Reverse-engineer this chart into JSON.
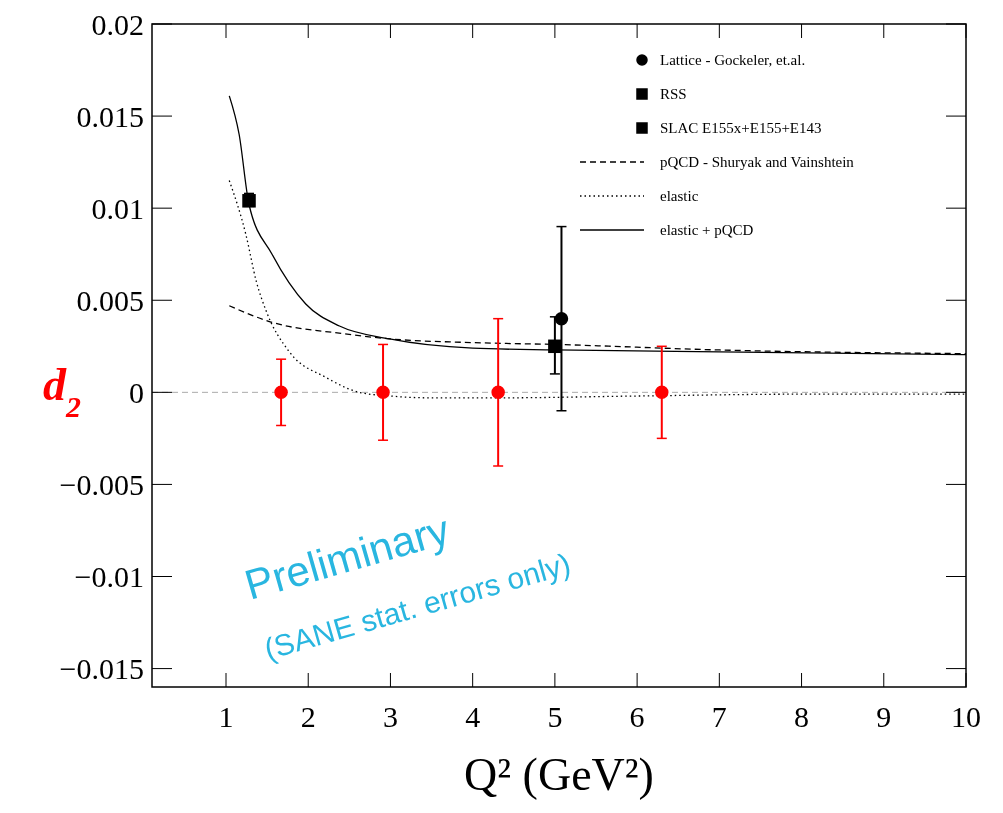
{
  "chart_data": {
    "type": "scatter",
    "xlabel": "Q² (GeV²)",
    "ylabel": "d$_{2}$",
    "xlim": [
      0.1,
      10
    ],
    "xticks": [
      1,
      2,
      3,
      4,
      5,
      6,
      7,
      8,
      9,
      10
    ],
    "ylim": [
      -0.016,
      0.02
    ],
    "yticks": [
      {
        "value": -0.015,
        "label": "−0.015"
      },
      {
        "value": -0.01,
        "label": "−0.01"
      },
      {
        "value": -0.005,
        "label": "−0.005"
      },
      0,
      0.005,
      0.01,
      0.015,
      0.02
    ],
    "legend": "top right",
    "grid": false,
    "ref_lines": [
      {
        "axis": "y",
        "value": 0,
        "color": "#aaaaaa",
        "line_style": "dashed"
      }
    ],
    "series": [
      {
        "name": "Lattice - Gockeler, et.al.",
        "marker": "circle",
        "color": "#000000",
        "x": [
          5.08
        ],
        "values": [
          0.004
        ],
        "errors": [
          [
            -0.001,
            0.009
          ]
        ]
      },
      {
        "name": "RSS",
        "marker": "square",
        "color": "#000000",
        "x": [
          1.28
        ],
        "values": [
          0.0104
        ],
        "errors": [
          [
            0.0101,
            0.0108
          ]
        ]
      },
      {
        "name": "SLAC E155x+E155+E143",
        "marker": "square",
        "color": "#000000",
        "x": [
          5.0
        ],
        "values": [
          0.0025
        ],
        "errors": [
          [
            0.001,
            0.0041
          ]
        ]
      },
      {
        "name": "pQCD - Shuryak and Vainshtein",
        "type": "line",
        "line_style": "dashed",
        "marker": "none",
        "color": "#000000",
        "x": [
          1.04,
          1.56,
          2.4,
          3,
          4,
          5,
          7,
          10
        ],
        "values": [
          0.0047,
          0.0038,
          0.0032,
          0.0029,
          0.0027,
          0.0026,
          0.0023,
          0.0021
        ]
      },
      {
        "name": "elastic",
        "type": "line",
        "line_style": "dotted",
        "marker": "none",
        "color": "#000000",
        "x": [
          1.04,
          1.24,
          1.37,
          1.49,
          1.77,
          2.22,
          2.62,
          3.0,
          3.5,
          4.3,
          6,
          8,
          10
        ],
        "values": [
          0.0115,
          0.0086,
          0.006,
          0.0044,
          0.0022,
          0.0008,
          0,
          -0.0002,
          -0.0003,
          -0.0003,
          -0.0002,
          -0.0001,
          -0.0001
        ]
      },
      {
        "name": "elastic + pQCD",
        "type": "line",
        "line_style": "solid",
        "marker": "none",
        "color": "#000000",
        "x": [
          1.04,
          1.16,
          1.28,
          1.56,
          1.97,
          2.38,
          2.99,
          4.0,
          5,
          7,
          10
        ],
        "values": [
          0.0161,
          0.014,
          0.0102,
          0.0075,
          0.0048,
          0.0036,
          0.0029,
          0.0024,
          0.0023,
          0.0022,
          0.00205
        ]
      },
      {
        "marker": "circle",
        "color": "#ff0000",
        "x": [
          1.67,
          2.91,
          4.31,
          6.3
        ],
        "values": [
          0,
          0,
          0,
          0
        ],
        "errors": [
          0.0018,
          0.0026,
          0.004,
          0.0025
        ]
      }
    ],
    "annotations": [
      "Preliminary",
      "(SANE stat. errors only)"
    ]
  }
}
